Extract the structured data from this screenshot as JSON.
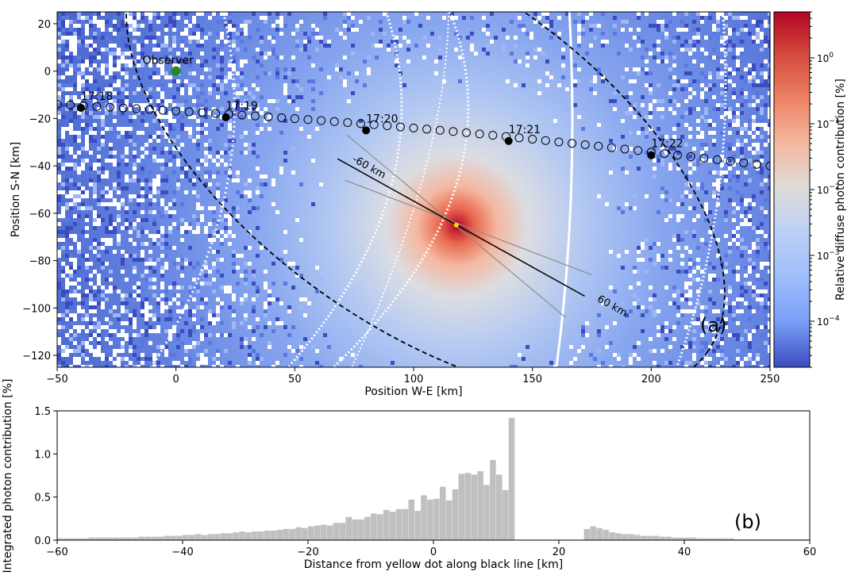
{
  "chart_data": [
    {
      "type": "heatmap",
      "panel_label": "(a)",
      "xlabel": "Position W-E [km]",
      "ylabel": "Position S-N [km]",
      "xlim": [
        -50,
        250
      ],
      "ylim": [
        -125,
        25
      ],
      "xticks": [
        -50,
        0,
        50,
        100,
        150,
        200,
        250
      ],
      "yticks": [
        20,
        0,
        -20,
        -40,
        -60,
        -80,
        -100,
        -120
      ],
      "colorbar": {
        "label": "Relative diffuse photon contribution [%]",
        "scale": "log",
        "range": [
          2e-05,
          5
        ],
        "ticks": [
          "10^0",
          "10^-1",
          "10^-2",
          "10^-3",
          "10^-4"
        ],
        "tick_values": [
          1,
          0.1,
          0.01,
          0.001,
          0.0001
        ],
        "colormap": "coolwarm",
        "color_low": "#3b4cc0",
        "color_mid": "#dddddd",
        "color_high": "#b40426"
      },
      "hotspot_center": [
        118,
        -65
      ],
      "observer": {
        "label": "Observer",
        "x": 0,
        "y": 0,
        "color": "#228b22"
      },
      "trajectory": {
        "from": [
          -50,
          -14
        ],
        "to": [
          250,
          -40
        ],
        "timestamps": [
          {
            "label": "17:18",
            "x": -40,
            "y": -15.5
          },
          {
            "label": "17:19",
            "x": 21,
            "y": -19.5
          },
          {
            "label": "17:20",
            "x": 80,
            "y": -25
          },
          {
            "label": "17:21",
            "x": 140,
            "y": -29.5
          },
          {
            "label": "17:22",
            "x": 200,
            "y": -35.5
          }
        ]
      },
      "ellipse": {
        "center": [
          105,
          -35
        ],
        "semi_axes": [
          145,
          73
        ],
        "angle_deg": 35,
        "style": "dashed"
      },
      "black_line": {
        "from": [
          68,
          -37
        ],
        "to": [
          172,
          -95
        ],
        "labels": [
          {
            "text": "-60 km",
            "x": 74,
            "y": -38
          },
          {
            "text": "60 km",
            "x": 177,
            "y": -97
          }
        ]
      },
      "gray_lines": [
        {
          "from": [
            71,
            -46
          ],
          "to": [
            175,
            -86
          ]
        },
        {
          "from": [
            72,
            -27
          ],
          "to": [
            164,
            -104
          ]
        }
      ],
      "yellow_dot": {
        "x": 118,
        "y": -65,
        "color": "#ffd700"
      }
    },
    {
      "type": "bar",
      "panel_label": "(b)",
      "xlabel": "Distance from yellow dot along black line [km]",
      "ylabel": "Integrated photon contribution [%]",
      "xlim": [
        -60,
        60
      ],
      "ylim": [
        0,
        1.5
      ],
      "xticks": [
        -60,
        -40,
        -20,
        0,
        20,
        40,
        60
      ],
      "yticks": [
        0.0,
        0.5,
        1.0,
        1.5
      ],
      "bin_width_km": 1,
      "bin_start_km": -60,
      "color": "#c0c0c0",
      "values": [
        0.02,
        0.02,
        0.02,
        0.02,
        0.02,
        0.03,
        0.03,
        0.03,
        0.03,
        0.03,
        0.03,
        0.03,
        0.03,
        0.04,
        0.04,
        0.04,
        0.04,
        0.05,
        0.05,
        0.05,
        0.06,
        0.06,
        0.07,
        0.06,
        0.07,
        0.07,
        0.08,
        0.08,
        0.09,
        0.1,
        0.09,
        0.1,
        0.1,
        0.11,
        0.11,
        0.12,
        0.13,
        0.13,
        0.15,
        0.14,
        0.16,
        0.17,
        0.18,
        0.17,
        0.2,
        0.2,
        0.27,
        0.24,
        0.24,
        0.27,
        0.31,
        0.3,
        0.35,
        0.33,
        0.36,
        0.36,
        0.47,
        0.34,
        0.52,
        0.47,
        0.48,
        0.62,
        0.46,
        0.59,
        0.77,
        0.78,
        0.76,
        0.8,
        0.64,
        0.93,
        0.76,
        0.58,
        1.42,
        0.0,
        0.0,
        0.0,
        0.0,
        0.0,
        0.0,
        0.0,
        0.0,
        0.0,
        0.0,
        0.0,
        0.13,
        0.16,
        0.14,
        0.12,
        0.09,
        0.08,
        0.07,
        0.07,
        0.06,
        0.05,
        0.05,
        0.05,
        0.04,
        0.04,
        0.03,
        0.03,
        0.03,
        0.03,
        0.02,
        0.02,
        0.02,
        0.02,
        0.02,
        0.02,
        0.01,
        0.01,
        0.01,
        0.01,
        0.01,
        0.01,
        0.01,
        0.01,
        0.01,
        0.01,
        0.01,
        0.01
      ]
    }
  ]
}
